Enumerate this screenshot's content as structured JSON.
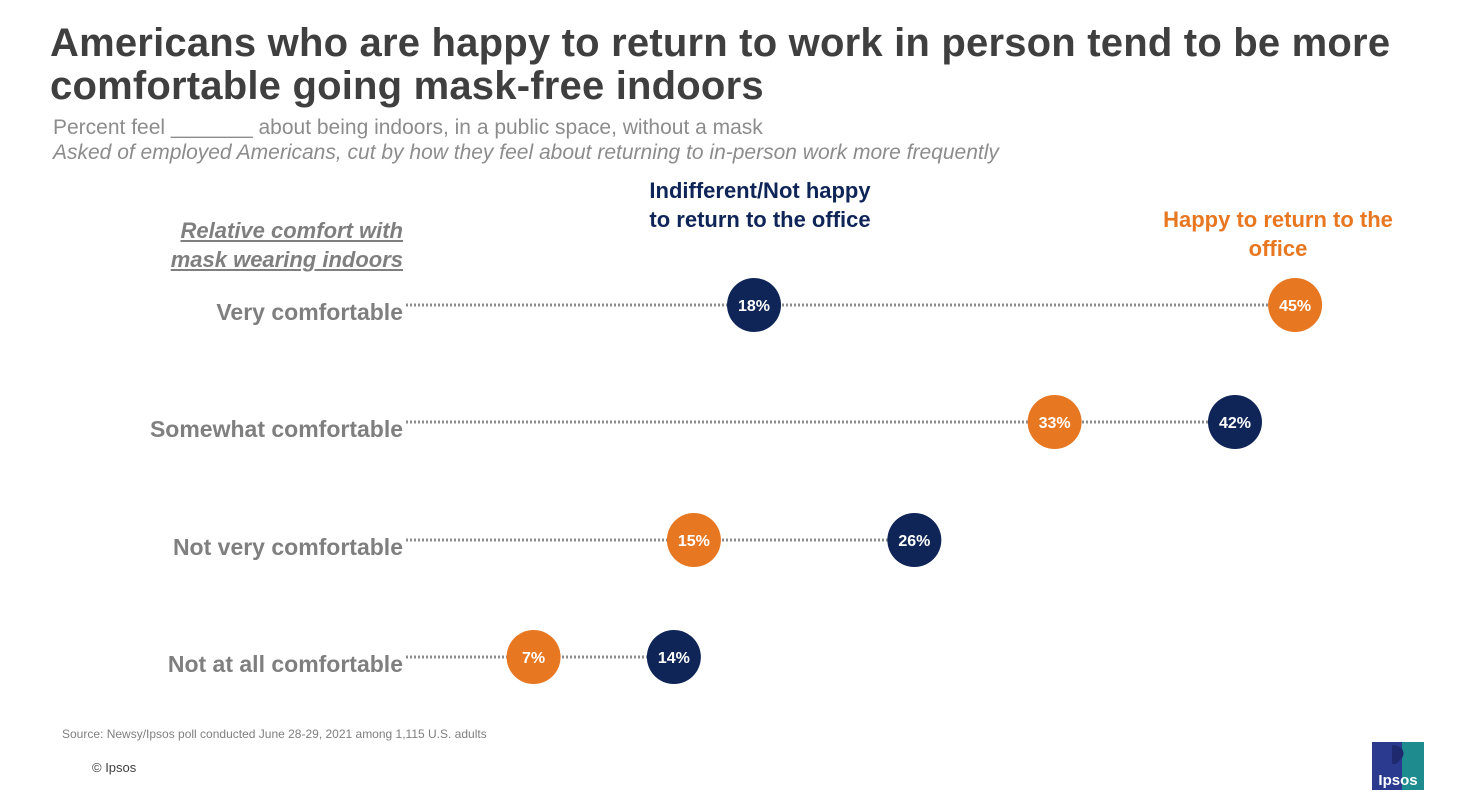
{
  "header": {
    "title": "Americans who are happy to return to work in person tend to be more comfortable going mask-free indoors",
    "subtitle": "Percent feel _______ about being indoors, in a public space, without a mask",
    "subtitle2": "Asked of employed Americans, cut by how they feel about returning to in-person work more frequently"
  },
  "colors": {
    "navy": "#0f2557",
    "orange": "#e87722",
    "label_gray": "#7f7f7f"
  },
  "chart_data": {
    "type": "dot-plot",
    "y_axis_header": "Relative comfort with mask wearing indoors",
    "categories": [
      "Very comfortable",
      "Somewhat comfortable",
      "Not very comfortable",
      "Not at all comfortable"
    ],
    "series": [
      {
        "name": "Indifferent/Not happy to return to the office",
        "color": "#0f2557",
        "values": [
          18,
          42,
          26,
          14
        ],
        "labels": [
          "18%",
          "42%",
          "26%",
          "14%"
        ]
      },
      {
        "name": "Happy to return to the office",
        "color": "#e87722",
        "values": [
          45,
          33,
          15,
          7
        ],
        "labels": [
          "45%",
          "33%",
          "15%",
          "7%"
        ]
      }
    ],
    "x_range": [
      0,
      50
    ]
  },
  "footer": {
    "source": "Source: Newsy/Ipsos poll conducted June 28-29, 2021 among 1,115 U.S. adults",
    "copyright": "© Ipsos",
    "logo_text": "Ipsos"
  }
}
